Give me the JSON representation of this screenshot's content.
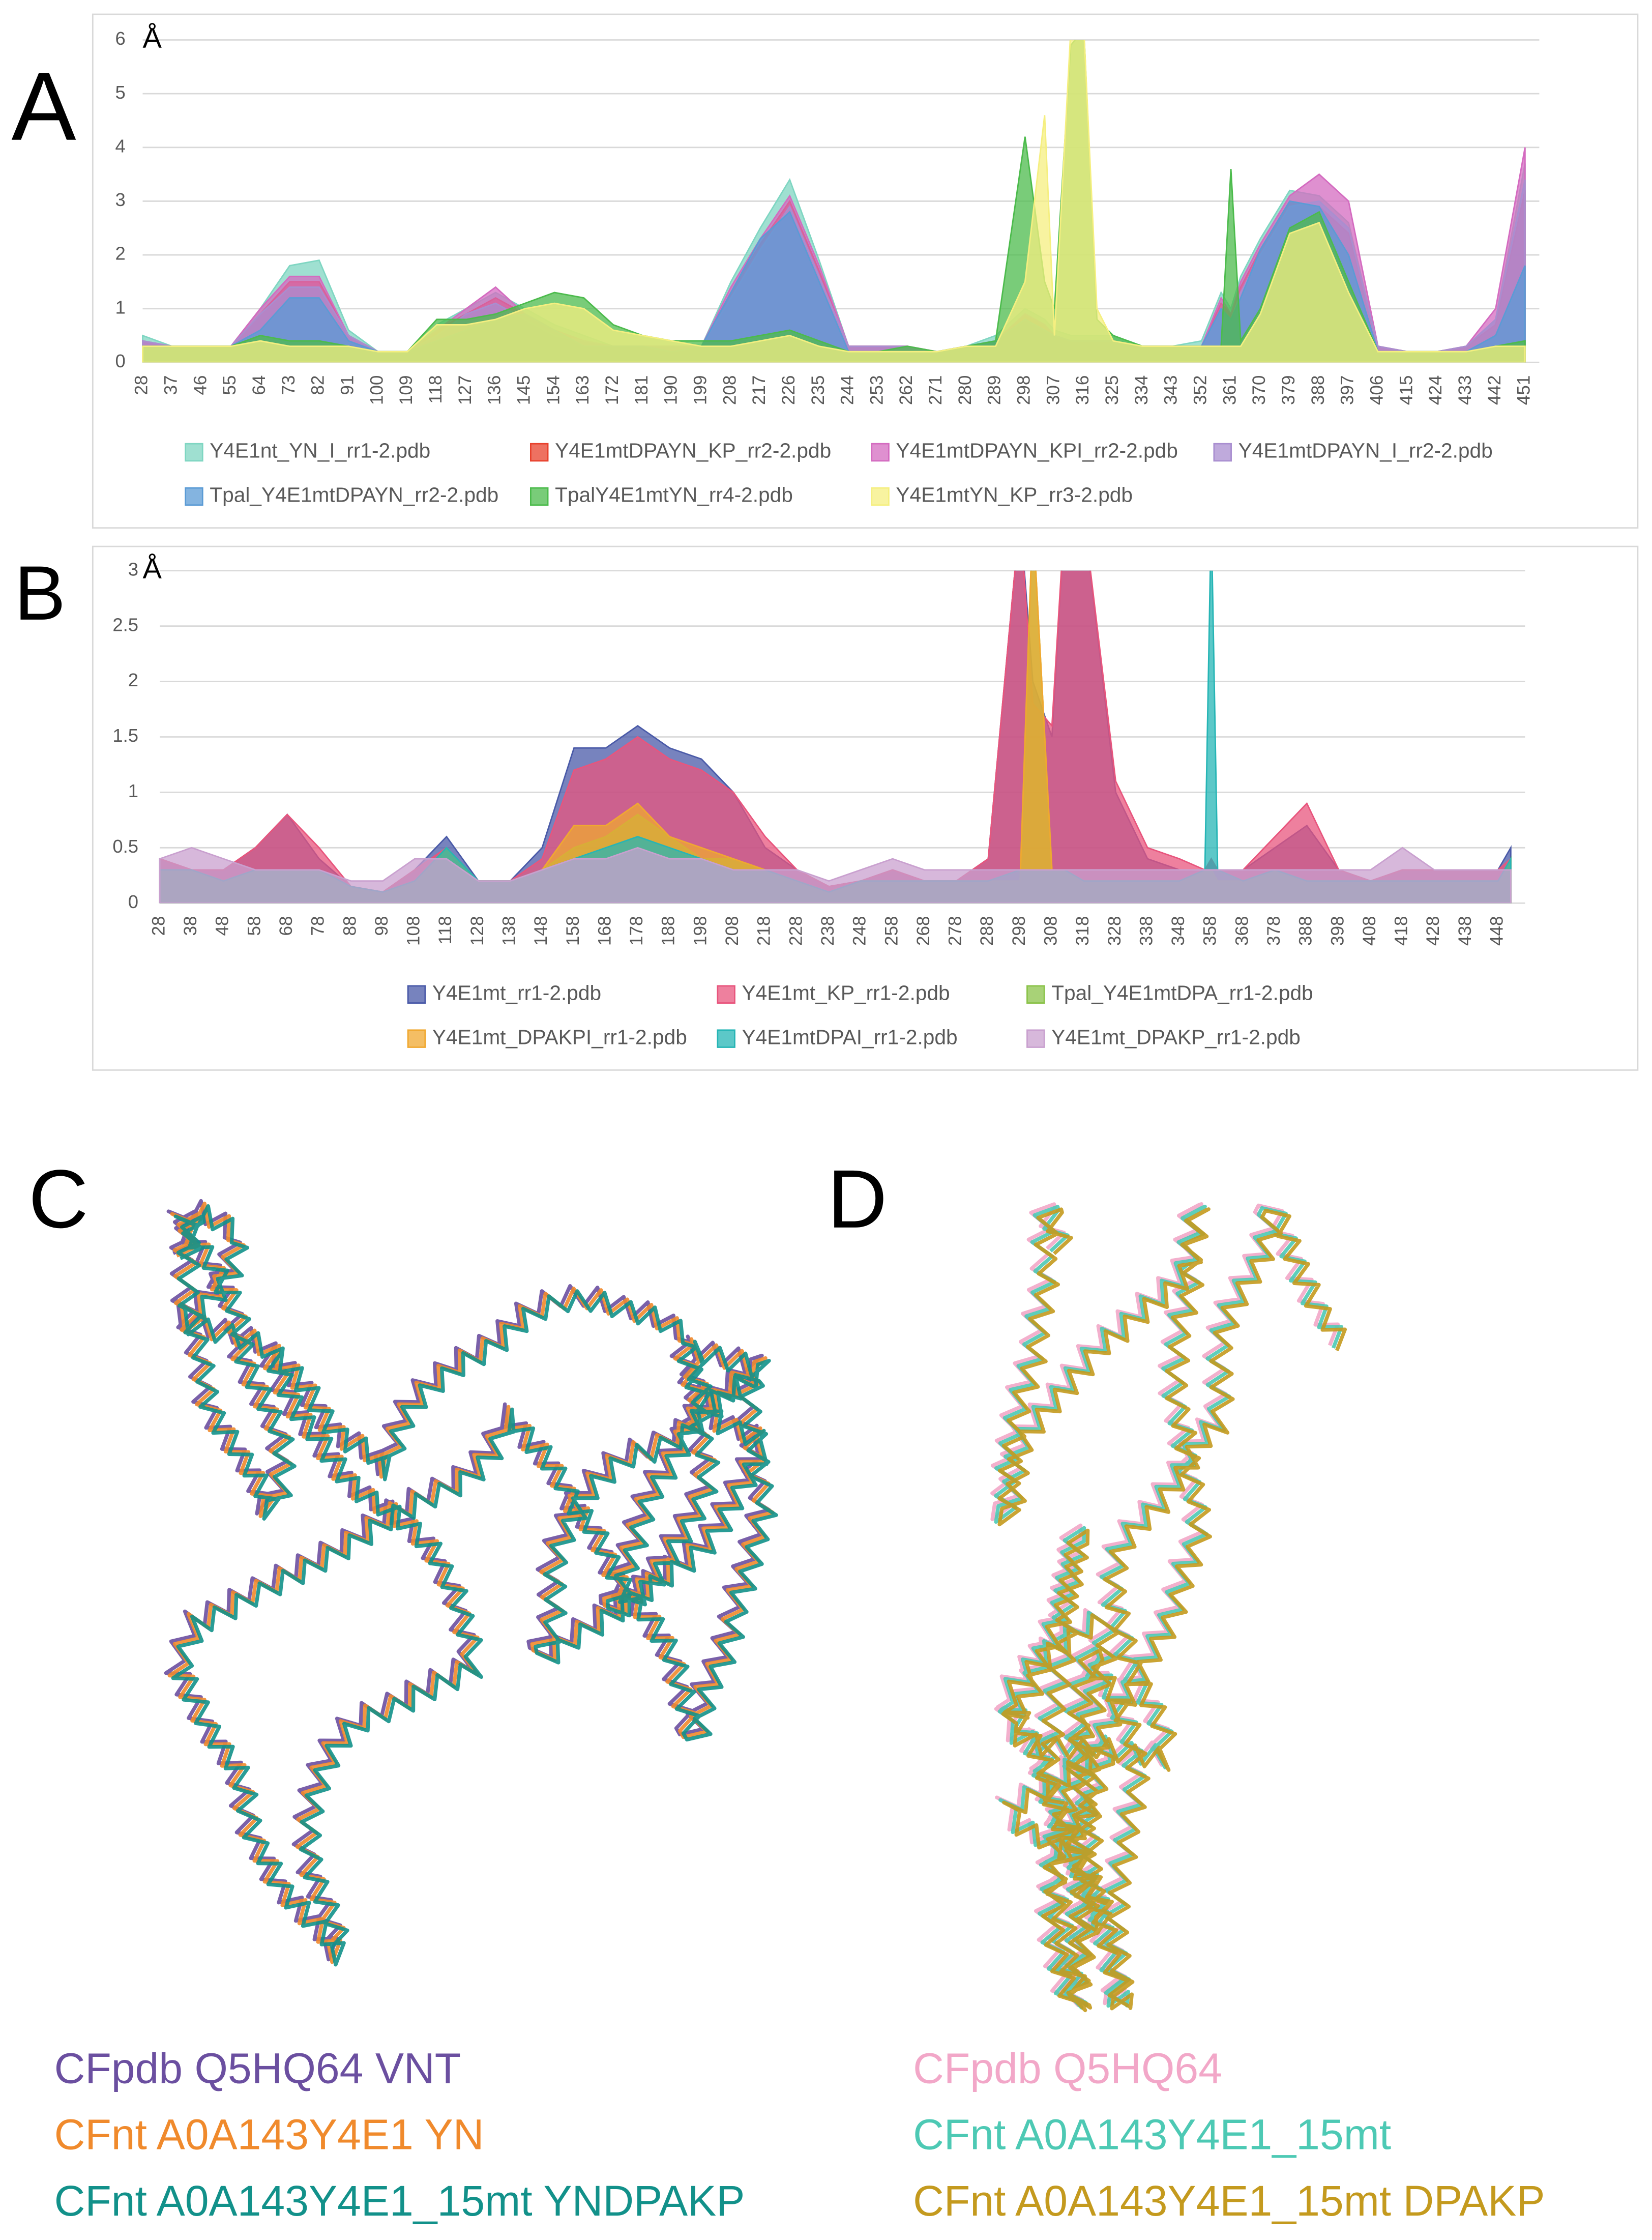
{
  "chart_data": [
    {
      "type": "area",
      "panel_label": "A",
      "y_unit_label": "Å",
      "grid": true,
      "x": [
        28,
        37,
        46,
        55,
        64,
        73,
        82,
        91,
        100,
        109,
        118,
        127,
        136,
        145,
        154,
        163,
        172,
        181,
        190,
        199,
        208,
        217,
        226,
        235,
        244,
        253,
        262,
        271,
        280,
        289,
        298,
        304,
        307,
        312,
        316,
        320,
        325,
        334,
        343,
        352,
        358,
        361,
        364,
        370,
        379,
        388,
        397,
        406,
        415,
        424,
        433,
        442,
        451
      ],
      "xlim": [
        28,
        451
      ],
      "xticks": [
        28,
        37,
        46,
        55,
        64,
        73,
        82,
        91,
        100,
        109,
        118,
        127,
        136,
        145,
        154,
        163,
        172,
        181,
        190,
        199,
        208,
        217,
        226,
        235,
        244,
        253,
        262,
        271,
        280,
        289,
        298,
        307,
        316,
        325,
        334,
        343,
        352,
        361,
        370,
        379,
        388,
        397,
        406,
        415,
        424,
        433,
        442,
        451
      ],
      "ylim": [
        0,
        6
      ],
      "yticks": [
        0,
        1,
        2,
        3,
        4,
        5,
        6
      ],
      "series": [
        {
          "name": "Y4E1nt_YN_I_rr1-2.pdb",
          "color": "#7fd6c2",
          "values": [
            0.5,
            0.3,
            0.3,
            0.3,
            1.0,
            1.8,
            1.9,
            0.6,
            0.2,
            0.2,
            0.7,
            1.0,
            1.3,
            1.0,
            0.7,
            0.5,
            0.3,
            0.3,
            0.3,
            0.3,
            1.5,
            2.5,
            3.4,
            1.9,
            0.3,
            0.3,
            0.3,
            0.2,
            0.3,
            0.5,
            1.0,
            0.8,
            0.6,
            0.5,
            0.5,
            0.5,
            0.5,
            0.3,
            0.3,
            0.4,
            1.3,
            1.0,
            1.6,
            2.3,
            3.2,
            3.1,
            2.6,
            0.3,
            0.2,
            0.2,
            0.3,
            0.8,
            3.7
          ]
        },
        {
          "name": "Y4E1mtDPAYN_KP_rr2-2.pdb",
          "color": "#e8412c",
          "values": [
            0.4,
            0.3,
            0.3,
            0.3,
            0.9,
            1.5,
            1.5,
            0.5,
            0.2,
            0.2,
            0.6,
            0.9,
            1.2,
            0.9,
            0.6,
            0.4,
            0.3,
            0.3,
            0.3,
            0.3,
            1.3,
            2.2,
            3.0,
            1.7,
            0.3,
            0.3,
            0.3,
            0.2,
            0.3,
            0.4,
            0.9,
            0.7,
            0.5,
            0.4,
            0.4,
            0.4,
            0.4,
            0.3,
            0.3,
            0.3,
            1.1,
            0.9,
            1.4,
            2.1,
            3.0,
            2.9,
            2.4,
            0.3,
            0.2,
            0.2,
            0.3,
            0.7,
            3.2
          ]
        },
        {
          "name": "Y4E1mtDPAYN_KPI_rr2-2.pdb",
          "color": "#d46bc0",
          "values": [
            0.4,
            0.3,
            0.3,
            0.3,
            1.0,
            1.6,
            1.6,
            0.5,
            0.2,
            0.2,
            0.6,
            1.0,
            1.4,
            0.9,
            0.6,
            0.4,
            0.3,
            0.3,
            0.3,
            0.3,
            1.4,
            2.3,
            3.1,
            1.8,
            0.3,
            0.3,
            0.3,
            0.2,
            0.3,
            0.4,
            0.9,
            0.7,
            0.5,
            0.4,
            0.4,
            0.4,
            0.4,
            0.3,
            0.3,
            0.3,
            1.2,
            0.9,
            1.5,
            2.2,
            3.1,
            3.5,
            3.0,
            0.3,
            0.2,
            0.2,
            0.3,
            1.0,
            4.0
          ]
        },
        {
          "name": "Y4E1mtDPAYN_I_rr2-2.pdb",
          "color": "#a98ed0",
          "values": [
            0.4,
            0.3,
            0.3,
            0.3,
            0.9,
            1.4,
            1.4,
            0.5,
            0.2,
            0.2,
            0.5,
            0.9,
            1.1,
            0.8,
            0.5,
            0.4,
            0.3,
            0.3,
            0.3,
            0.3,
            1.2,
            2.1,
            2.9,
            1.6,
            0.3,
            0.3,
            0.3,
            0.2,
            0.3,
            0.4,
            0.8,
            0.6,
            0.5,
            0.4,
            0.4,
            0.4,
            0.4,
            0.3,
            0.3,
            0.3,
            1.0,
            0.8,
            1.3,
            2.0,
            2.9,
            3.0,
            2.5,
            0.3,
            0.2,
            0.2,
            0.3,
            0.8,
            3.4
          ]
        },
        {
          "name": "Tpal_Y4E1mtDPAYN_rr2-2.pdb",
          "color": "#5b9bd5",
          "values": [
            0.3,
            0.3,
            0.3,
            0.3,
            0.6,
            1.2,
            1.2,
            0.4,
            0.2,
            0.2,
            0.4,
            0.6,
            0.8,
            0.9,
            0.6,
            0.3,
            0.3,
            0.3,
            0.2,
            0.3,
            1.3,
            2.3,
            2.8,
            1.5,
            0.2,
            0.2,
            0.2,
            0.2,
            0.3,
            0.4,
            0.8,
            0.6,
            0.5,
            0.4,
            0.4,
            0.4,
            0.4,
            0.3,
            0.3,
            0.3,
            1.0,
            0.8,
            1.2,
            2.1,
            3.0,
            2.9,
            2.0,
            0.2,
            0.2,
            0.2,
            0.2,
            0.5,
            1.8
          ]
        },
        {
          "name": "TpalY4E1mtYN_rr4-2.pdb",
          "color": "#4cbb4c",
          "values": [
            0.3,
            0.3,
            0.3,
            0.3,
            0.5,
            0.4,
            0.4,
            0.3,
            0.2,
            0.2,
            0.8,
            0.8,
            0.9,
            1.1,
            1.3,
            1.2,
            0.7,
            0.5,
            0.4,
            0.4,
            0.4,
            0.5,
            0.6,
            0.4,
            0.2,
            0.2,
            0.3,
            0.2,
            0.3,
            0.4,
            4.2,
            1.5,
            1.0,
            5.9,
            6.2,
            0.8,
            0.5,
            0.3,
            0.3,
            0.3,
            0.3,
            3.6,
            0.4,
            1.0,
            2.5,
            2.8,
            1.5,
            0.2,
            0.2,
            0.2,
            0.2,
            0.3,
            0.4
          ]
        },
        {
          "name": "Y4E1mtYN_KP_rr3-2.pdb",
          "color": "#f5ef80",
          "values": [
            0.3,
            0.3,
            0.3,
            0.3,
            0.4,
            0.3,
            0.3,
            0.3,
            0.2,
            0.2,
            0.7,
            0.7,
            0.8,
            1.0,
            1.1,
            1.0,
            0.6,
            0.5,
            0.4,
            0.3,
            0.3,
            0.4,
            0.5,
            0.3,
            0.2,
            0.2,
            0.2,
            0.2,
            0.3,
            0.3,
            1.5,
            4.6,
            0.5,
            6.2,
            6.2,
            1.0,
            0.4,
            0.3,
            0.3,
            0.3,
            0.3,
            0.3,
            0.3,
            0.9,
            2.4,
            2.6,
            1.3,
            0.2,
            0.2,
            0.2,
            0.2,
            0.3,
            0.3
          ]
        }
      ]
    },
    {
      "type": "area",
      "panel_label": "B",
      "y_unit_label": "Å",
      "grid": true,
      "x": [
        28,
        38,
        48,
        58,
        68,
        78,
        88,
        98,
        108,
        118,
        128,
        138,
        148,
        158,
        168,
        178,
        188,
        198,
        208,
        218,
        228,
        238,
        248,
        258,
        268,
        278,
        288,
        298,
        302,
        308,
        312,
        318,
        328,
        338,
        348,
        356,
        358,
        360,
        368,
        378,
        388,
        398,
        408,
        418,
        428,
        438,
        448,
        452
      ],
      "xlim": [
        28,
        452
      ],
      "xticks": [
        28,
        38,
        48,
        58,
        68,
        78,
        88,
        98,
        108,
        118,
        128,
        138,
        148,
        158,
        168,
        178,
        188,
        198,
        208,
        218,
        228,
        238,
        248,
        258,
        268,
        278,
        288,
        298,
        308,
        318,
        328,
        338,
        348,
        358,
        368,
        378,
        388,
        398,
        408,
        418,
        428,
        438,
        448
      ],
      "ylim": [
        0,
        3
      ],
      "yticks": [
        0,
        0.5,
        1,
        1.5,
        2,
        2.5,
        3
      ],
      "series": [
        {
          "name": "Y4E1mt_rr1-2.pdb",
          "color": "#4a5aa8",
          "values": [
            0.4,
            0.3,
            0.3,
            0.5,
            0.8,
            0.4,
            0.15,
            0.1,
            0.3,
            0.6,
            0.2,
            0.2,
            0.5,
            1.4,
            1.4,
            1.6,
            1.4,
            1.3,
            1.0,
            0.5,
            0.3,
            0.15,
            0.2,
            0.3,
            0.2,
            0.2,
            0.4,
            3.5,
            2.0,
            1.5,
            3.5,
            3.5,
            1.0,
            0.4,
            0.3,
            0.3,
            0.4,
            0.3,
            0.3,
            0.5,
            0.7,
            0.3,
            0.2,
            0.3,
            0.3,
            0.3,
            0.3,
            0.5
          ]
        },
        {
          "name": "Y4E1mt_KP_rr1-2.pdb",
          "color": "#e8557d",
          "values": [
            0.4,
            0.3,
            0.3,
            0.5,
            0.8,
            0.5,
            0.15,
            0.1,
            0.3,
            0.5,
            0.2,
            0.2,
            0.4,
            1.2,
            1.3,
            1.5,
            1.3,
            1.2,
            1.0,
            0.6,
            0.3,
            0.15,
            0.2,
            0.3,
            0.2,
            0.2,
            0.4,
            3.5,
            1.8,
            1.6,
            3.5,
            3.5,
            1.1,
            0.5,
            0.4,
            0.3,
            0.4,
            0.3,
            0.3,
            0.6,
            0.9,
            0.3,
            0.2,
            0.3,
            0.3,
            0.3,
            0.3,
            0.4
          ]
        },
        {
          "name": "Tpal_Y4E1mtDPA_rr1-2.pdb",
          "color": "#8bc34a",
          "values": [
            0.3,
            0.3,
            0.2,
            0.3,
            0.3,
            0.3,
            0.15,
            0.1,
            0.2,
            0.5,
            0.2,
            0.2,
            0.3,
            0.5,
            0.6,
            0.8,
            0.6,
            0.4,
            0.4,
            0.3,
            0.2,
            0.1,
            0.2,
            0.2,
            0.2,
            0.2,
            0.2,
            0.2,
            3.5,
            0.3,
            0.3,
            0.2,
            0.2,
            0.2,
            0.2,
            0.3,
            0.3,
            0.2,
            0.2,
            0.3,
            0.2,
            0.2,
            0.2,
            0.2,
            0.2,
            0.2,
            0.2,
            0.4
          ]
        },
        {
          "name": "Y4E1mt_DPAKPI_rr1-2.pdb",
          "color": "#f0a830",
          "values": [
            0.3,
            0.3,
            0.2,
            0.3,
            0.3,
            0.3,
            0.15,
            0.1,
            0.2,
            0.5,
            0.2,
            0.2,
            0.3,
            0.7,
            0.7,
            0.9,
            0.6,
            0.5,
            0.4,
            0.3,
            0.2,
            0.1,
            0.2,
            0.2,
            0.2,
            0.2,
            0.2,
            0.2,
            3.5,
            0.3,
            0.3,
            0.2,
            0.2,
            0.2,
            0.2,
            0.3,
            0.3,
            0.2,
            0.2,
            0.3,
            0.2,
            0.2,
            0.2,
            0.2,
            0.2,
            0.2,
            0.2,
            0.4
          ]
        },
        {
          "name": "Y4E1mtDPAI_rr1-2.pdb",
          "color": "#26b5b5",
          "values": [
            0.3,
            0.3,
            0.2,
            0.3,
            0.3,
            0.3,
            0.15,
            0.1,
            0.2,
            0.5,
            0.2,
            0.2,
            0.3,
            0.4,
            0.5,
            0.6,
            0.5,
            0.4,
            0.3,
            0.3,
            0.2,
            0.1,
            0.2,
            0.2,
            0.2,
            0.2,
            0.2,
            0.3,
            0.3,
            0.3,
            0.3,
            0.2,
            0.2,
            0.2,
            0.2,
            0.3,
            3.5,
            0.3,
            0.2,
            0.3,
            0.2,
            0.2,
            0.2,
            0.2,
            0.2,
            0.2,
            0.2,
            0.4
          ]
        },
        {
          "name": "Y4E1mt_DPAKP_rr1-2.pdb",
          "color": "#c9a0cf",
          "values": [
            0.4,
            0.5,
            0.4,
            0.3,
            0.3,
            0.3,
            0.2,
            0.2,
            0.4,
            0.4,
            0.2,
            0.2,
            0.3,
            0.4,
            0.4,
            0.5,
            0.4,
            0.4,
            0.3,
            0.3,
            0.3,
            0.2,
            0.3,
            0.4,
            0.3,
            0.3,
            0.3,
            0.3,
            0.3,
            0.3,
            0.3,
            0.3,
            0.3,
            0.3,
            0.3,
            0.3,
            0.3,
            0.3,
            0.3,
            0.3,
            0.3,
            0.3,
            0.3,
            0.5,
            0.3,
            0.3,
            0.3,
            0.3
          ]
        }
      ]
    }
  ],
  "structure_panels": [
    {
      "label": "C",
      "legend": [
        {
          "text": "CFpdb Q5HQ64 VNT",
          "color": "#6b4fa0"
        },
        {
          "text": "CFnt A0A143Y4E1 YN",
          "color": "#f08a2c"
        },
        {
          "text": "CFnt A0A143Y4E1_15mt YNDPAKP",
          "color": "#12918a"
        }
      ]
    },
    {
      "label": "D",
      "legend": [
        {
          "text": "CFpdb Q5HQ64",
          "color": "#f2a7c8"
        },
        {
          "text": "CFnt A0A143Y4E1_15mt",
          "color": "#4dc9b4"
        },
        {
          "text": "CFnt A0A143Y4E1_15mt DPAKP",
          "color": "#c49a1e"
        }
      ]
    }
  ]
}
